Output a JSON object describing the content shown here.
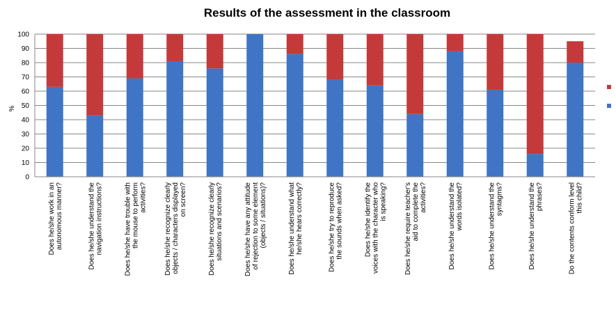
{
  "chart_data": {
    "type": "stacked_bar",
    "title": "Results of the assessment in the classroom",
    "y_label": "%",
    "categories": [
      "Does he/she work in an autonomous manner?",
      "Does he/she understand the navigation instructions?",
      "Does he/she have trouble with the mouse to perform activities?",
      "Does he/she recognize clearly objects / characters displayed on screen?",
      "Does he/she recognize clearly situations and scenarios?",
      "Does he/she have any attitude of rejection to some element (objects / situations)?",
      "Does he/she understand what he/she hears correctly?",
      "Does he/she try to reproduce the sounds when asked?",
      "Does he/she identify the voices with the character who is speaking?",
      "Does he/she require teacher's aid to complete the activities?",
      "Does he/she understand the words isolated?",
      "Does he/she understand the syntagms?",
      "Does he/she understand the phrases?",
      "Do the contents conform level this child?"
    ],
    "series": [
      {
        "color": "#3f75c4",
        "values": [
          63,
          43,
          69,
          81,
          76,
          100,
          86,
          68,
          64,
          44,
          88,
          61,
          16,
          80
        ]
      },
      {
        "color": "#c43a3a",
        "values": [
          37,
          57,
          31,
          19,
          24,
          0,
          14,
          32,
          36,
          56,
          12,
          39,
          84,
          15
        ]
      }
    ],
    "ylim": [
      0,
      100
    ],
    "yticks": [
      0,
      10,
      20,
      30,
      40,
      50,
      60,
      70,
      80,
      90,
      100
    ],
    "grid": true
  }
}
